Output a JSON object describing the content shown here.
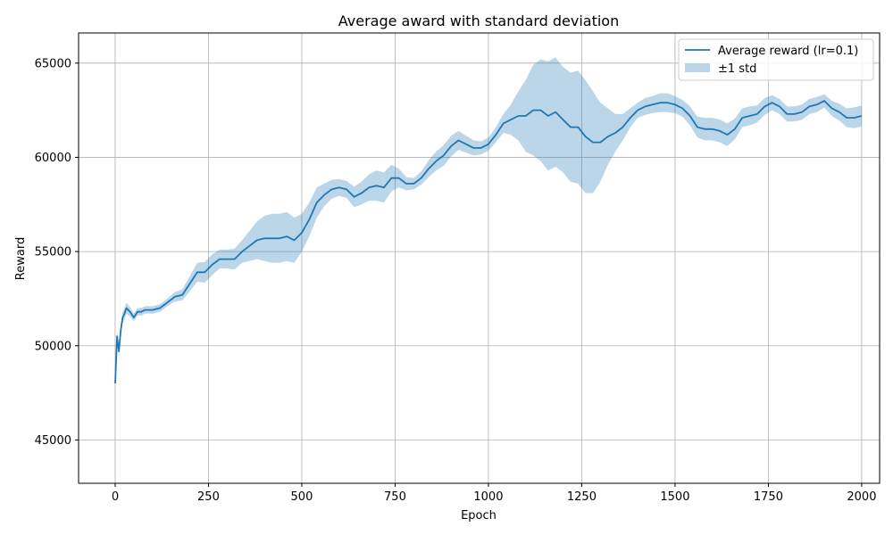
{
  "chart_data": {
    "type": "line",
    "title": "Average award with standard deviation",
    "xlabel": "Epoch",
    "ylabel": "Reward",
    "xlim": [
      -98,
      2048
    ],
    "ylim": [
      42700,
      66600
    ],
    "x_ticks": [
      0,
      250,
      500,
      750,
      1000,
      1250,
      1500,
      1750,
      2000
    ],
    "y_ticks": [
      45000,
      50000,
      55000,
      60000,
      65000
    ],
    "grid": true,
    "legend_position": "top-right",
    "colors": {
      "line": "#1f77b4",
      "band": "#1f77b4",
      "grid": "#b0b0b0"
    },
    "series": [
      {
        "name": "Average reward (lr=0.1)",
        "x": [
          0,
          5,
          10,
          15,
          20,
          25,
          30,
          40,
          50,
          60,
          70,
          80,
          100,
          120,
          140,
          160,
          180,
          200,
          220,
          240,
          260,
          280,
          300,
          320,
          340,
          360,
          380,
          400,
          420,
          440,
          460,
          480,
          500,
          520,
          540,
          560,
          580,
          600,
          620,
          640,
          660,
          680,
          700,
          720,
          740,
          760,
          780,
          800,
          820,
          840,
          860,
          880,
          900,
          920,
          940,
          960,
          980,
          1000,
          1020,
          1040,
          1060,
          1080,
          1100,
          1120,
          1140,
          1160,
          1180,
          1200,
          1220,
          1240,
          1260,
          1280,
          1300,
          1320,
          1340,
          1360,
          1380,
          1400,
          1420,
          1440,
          1460,
          1480,
          1500,
          1520,
          1540,
          1560,
          1580,
          1600,
          1620,
          1640,
          1660,
          1680,
          1700,
          1720,
          1740,
          1760,
          1780,
          1800,
          1820,
          1840,
          1860,
          1880,
          1900,
          1920,
          1940,
          1960,
          1980,
          2000
        ],
        "mean": [
          48000,
          50500,
          49700,
          50800,
          51500,
          51700,
          52000,
          51800,
          51500,
          51800,
          51800,
          51900,
          51900,
          52000,
          52300,
          52600,
          52700,
          53300,
          53900,
          53900,
          54300,
          54600,
          54600,
          54600,
          55000,
          55300,
          55600,
          55700,
          55700,
          55700,
          55800,
          55600,
          56000,
          56700,
          57600,
          58000,
          58300,
          58400,
          58300,
          57900,
          58100,
          58400,
          58500,
          58400,
          58900,
          58900,
          58600,
          58600,
          58900,
          59400,
          59800,
          60100,
          60600,
          60900,
          60700,
          60500,
          60500,
          60700,
          61200,
          61800,
          62000,
          62200,
          62200,
          62500,
          62500,
          62200,
          62400,
          62000,
          61600,
          61600,
          61100,
          60800,
          60800,
          61100,
          61300,
          61600,
          62100,
          62500,
          62700,
          62800,
          62900,
          62900,
          62800,
          62600,
          62200,
          61600,
          61500,
          61500,
          61400,
          61200,
          61500,
          62100,
          62200,
          62300,
          62700,
          62900,
          62700,
          62300,
          62300,
          62400,
          62700,
          62800,
          63000,
          62600,
          62400,
          62100,
          62100,
          62200
        ],
        "std": [
          0,
          200,
          250,
          250,
          300,
          300,
          300,
          250,
          200,
          200,
          200,
          200,
          200,
          200,
          200,
          250,
          300,
          400,
          500,
          550,
          550,
          500,
          500,
          550,
          600,
          800,
          1000,
          1200,
          1300,
          1300,
          1300,
          1200,
          1000,
          900,
          800,
          600,
          500,
          450,
          450,
          550,
          600,
          700,
          800,
          800,
          700,
          500,
          350,
          300,
          350,
          450,
          500,
          550,
          550,
          500,
          450,
          400,
          350,
          350,
          400,
          500,
          800,
          1300,
          1900,
          2400,
          2700,
          2900,
          2900,
          2800,
          2900,
          3000,
          3000,
          2700,
          2100,
          1500,
          1000,
          700,
          500,
          400,
          450,
          450,
          500,
          500,
          450,
          450,
          500,
          550,
          600,
          600,
          600,
          600,
          550,
          500,
          500,
          450,
          450,
          400,
          400,
          400,
          400,
          400,
          400,
          400,
          350,
          400,
          450,
          500,
          550,
          550
        ]
      }
    ],
    "legend": {
      "line_label": "Average reward (lr=0.1)",
      "band_label": "±1 std"
    }
  }
}
